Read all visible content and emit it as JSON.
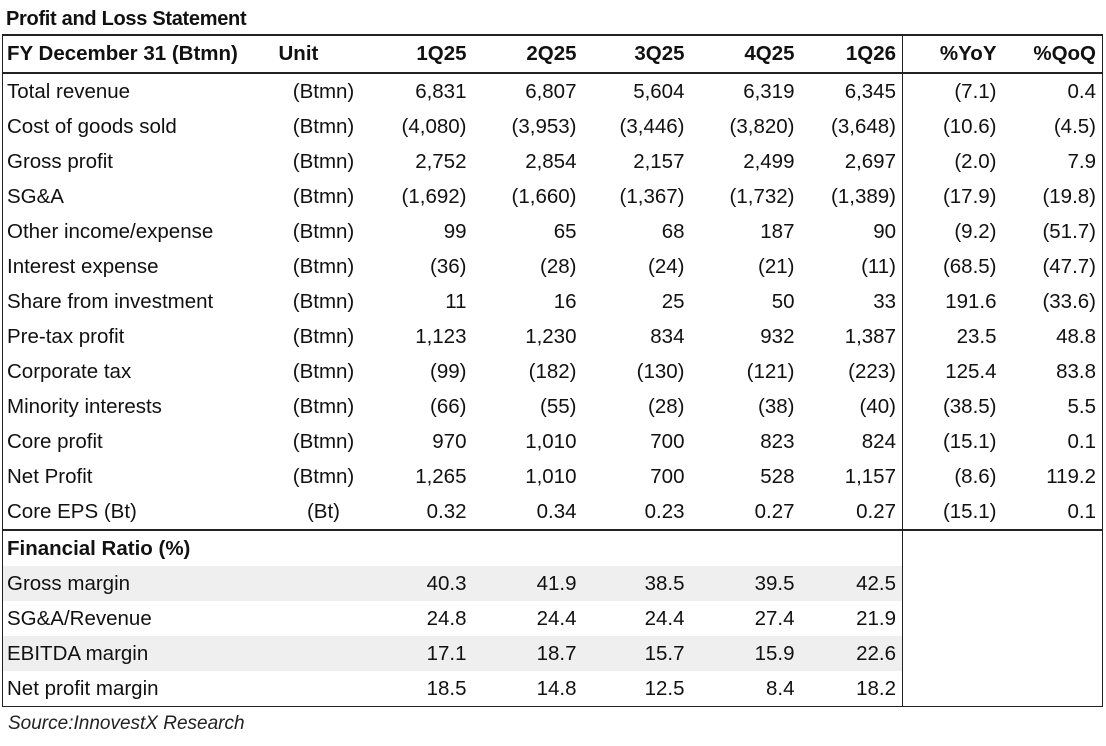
{
  "title": "Profit and Loss Statement",
  "header": {
    "label": "FY December 31 (Btmn)",
    "unit": "Unit",
    "periods": [
      "1Q25",
      "2Q25",
      "3Q25",
      "4Q25",
      "1Q26"
    ],
    "changes": [
      "%YoY",
      "%QoQ"
    ]
  },
  "rows": [
    {
      "label": "Total revenue",
      "unit": "(Btmn)",
      "values": [
        "6,831",
        "6,807",
        "5,604",
        "6,319",
        "6,345"
      ],
      "changes": [
        "(7.1)",
        "0.4"
      ]
    },
    {
      "label": "Cost of goods sold",
      "unit": "(Btmn)",
      "values": [
        "(4,080)",
        "(3,953)",
        "(3,446)",
        "(3,820)",
        "(3,648)"
      ],
      "changes": [
        "(10.6)",
        "(4.5)"
      ]
    },
    {
      "label": "Gross profit",
      "unit": "(Btmn)",
      "values": [
        "2,752",
        "2,854",
        "2,157",
        "2,499",
        "2,697"
      ],
      "changes": [
        "(2.0)",
        "7.9"
      ]
    },
    {
      "label": "SG&A",
      "unit": "(Btmn)",
      "values": [
        "(1,692)",
        "(1,660)",
        "(1,367)",
        "(1,732)",
        "(1,389)"
      ],
      "changes": [
        "(17.9)",
        "(19.8)"
      ]
    },
    {
      "label": "Other income/expense",
      "unit": "(Btmn)",
      "values": [
        "99",
        "65",
        "68",
        "187",
        "90"
      ],
      "changes": [
        "(9.2)",
        "(51.7)"
      ]
    },
    {
      "label": "Interest expense",
      "unit": "(Btmn)",
      "values": [
        "(36)",
        "(28)",
        "(24)",
        "(21)",
        "(11)"
      ],
      "changes": [
        "(68.5)",
        "(47.7)"
      ]
    },
    {
      "label": "Share from investment",
      "unit": "(Btmn)",
      "values": [
        "11",
        "16",
        "25",
        "50",
        "33"
      ],
      "changes": [
        "191.6",
        "(33.6)"
      ]
    },
    {
      "label": "Pre-tax profit",
      "unit": "(Btmn)",
      "values": [
        "1,123",
        "1,230",
        "834",
        "932",
        "1,387"
      ],
      "changes": [
        "23.5",
        "48.8"
      ]
    },
    {
      "label": "Corporate tax",
      "unit": "(Btmn)",
      "values": [
        "(99)",
        "(182)",
        "(130)",
        "(121)",
        "(223)"
      ],
      "changes": [
        "125.4",
        "83.8"
      ]
    },
    {
      "label": "Minority interests",
      "unit": "(Btmn)",
      "values": [
        "(66)",
        "(55)",
        "(28)",
        "(38)",
        "(40)"
      ],
      "changes": [
        "(38.5)",
        "5.5"
      ]
    },
    {
      "label": "Core profit",
      "unit": "(Btmn)",
      "values": [
        "970",
        "1,010",
        "700",
        "823",
        "824"
      ],
      "changes": [
        "(15.1)",
        "0.1"
      ]
    },
    {
      "label": "Net Profit",
      "unit": "(Btmn)",
      "values": [
        "1,265",
        "1,010",
        "700",
        "528",
        "1,157"
      ],
      "changes": [
        "(8.6)",
        "119.2"
      ]
    },
    {
      "label": "Core EPS (Bt)",
      "unit": "(Bt)",
      "values": [
        "0.32",
        "0.34",
        "0.23",
        "0.27",
        "0.27"
      ],
      "changes": [
        "(15.1)",
        "0.1"
      ]
    }
  ],
  "ratio_section": {
    "title": "Financial Ratio (%)",
    "rows": [
      {
        "label": "Gross margin",
        "values": [
          "40.3",
          "41.9",
          "38.5",
          "39.5",
          "42.5"
        ]
      },
      {
        "label": "SG&A/Revenue",
        "values": [
          "24.8",
          "24.4",
          "24.4",
          "27.4",
          "21.9"
        ]
      },
      {
        "label": "EBITDA margin",
        "values": [
          "17.1",
          "18.7",
          "15.7",
          "15.9",
          "22.6"
        ]
      },
      {
        "label": "Net profit margin",
        "values": [
          "18.5",
          "14.8",
          "12.5",
          "8.4",
          "18.2"
        ]
      }
    ]
  },
  "source": "Source:InnovestX Research"
}
